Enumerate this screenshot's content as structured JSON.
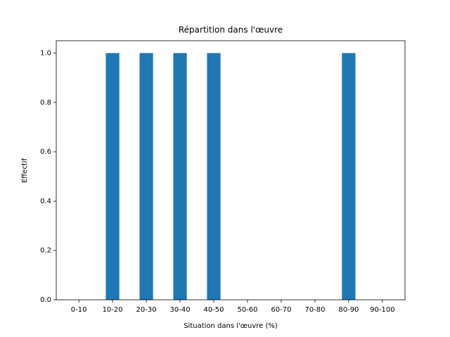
{
  "chart_data": {
    "type": "bar",
    "title": "Répartition dans l'œuvre",
    "xlabel": "Situation dans l'œuvre (%)",
    "ylabel": "Effectif",
    "categories": [
      "0-10",
      "10-20",
      "20-30",
      "30-40",
      "40-50",
      "50-60",
      "60-70",
      "70-80",
      "80-90",
      "90-100"
    ],
    "values": [
      0,
      1,
      1,
      1,
      1,
      0,
      0,
      0,
      1,
      0
    ],
    "color": "#1f77b4",
    "ylim": [
      0,
      1.05
    ],
    "yticks": [
      {
        "value": 0,
        "label": "0.0"
      },
      0.2,
      0.4,
      0.6,
      0.8,
      {
        "value": 1,
        "label": "1.0"
      }
    ],
    "grid": false
  }
}
